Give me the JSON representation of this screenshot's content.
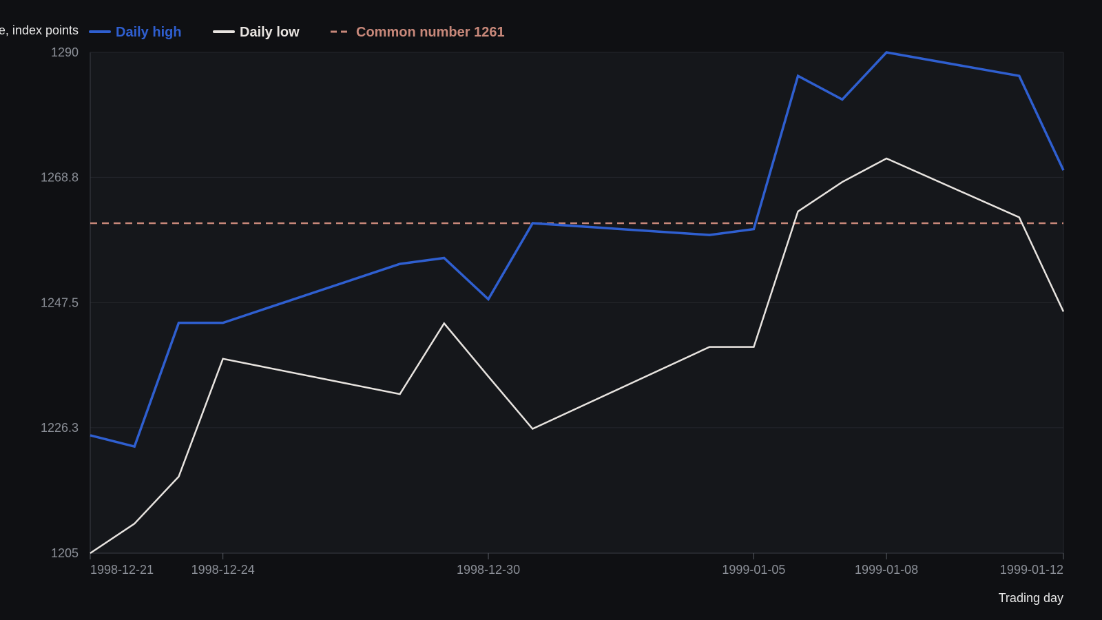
{
  "chart_data": {
    "type": "line",
    "xlabel": "Trading day",
    "ylabel": "e, index points",
    "ylim": [
      1205,
      1290
    ],
    "yticks": [
      "1205",
      "1226.3",
      "1247.5",
      "1268.8",
      "1290"
    ],
    "x": [
      "1998-12-21",
      "1998-12-22",
      "1998-12-23",
      "1998-12-24",
      "1998-12-28",
      "1998-12-29",
      "1998-12-30",
      "1998-12-31",
      "1999-01-04",
      "1999-01-05",
      "1999-01-06",
      "1999-01-07",
      "1999-01-08",
      "1999-01-11",
      "1999-01-12"
    ],
    "xticks": [
      "1998-12-21",
      "1998-12-24",
      "1998-12-30",
      "1999-01-05",
      "1999-01-08",
      "1999-01-12"
    ],
    "series": [
      {
        "name": "Daily high",
        "color": "#2f5fd0",
        "values": [
          1225,
          1223.1,
          1244.1,
          1244.1,
          1254.1,
          1255.1,
          1248.1,
          1261,
          1259,
          1260,
          1286,
          1282,
          1290,
          1286,
          1270
        ]
      },
      {
        "name": "Daily low",
        "color": "#e8e4e0",
        "values": [
          1205,
          1210,
          1218,
          1238,
          1232,
          1244,
          1235,
          1226.1,
          1240,
          1240,
          1263,
          1268,
          1272,
          1262,
          1246
        ]
      }
    ],
    "reference_line": {
      "name": "Common number 1261",
      "value": 1261,
      "color": "#c8887a"
    },
    "grid": true,
    "legend_position": "top"
  }
}
